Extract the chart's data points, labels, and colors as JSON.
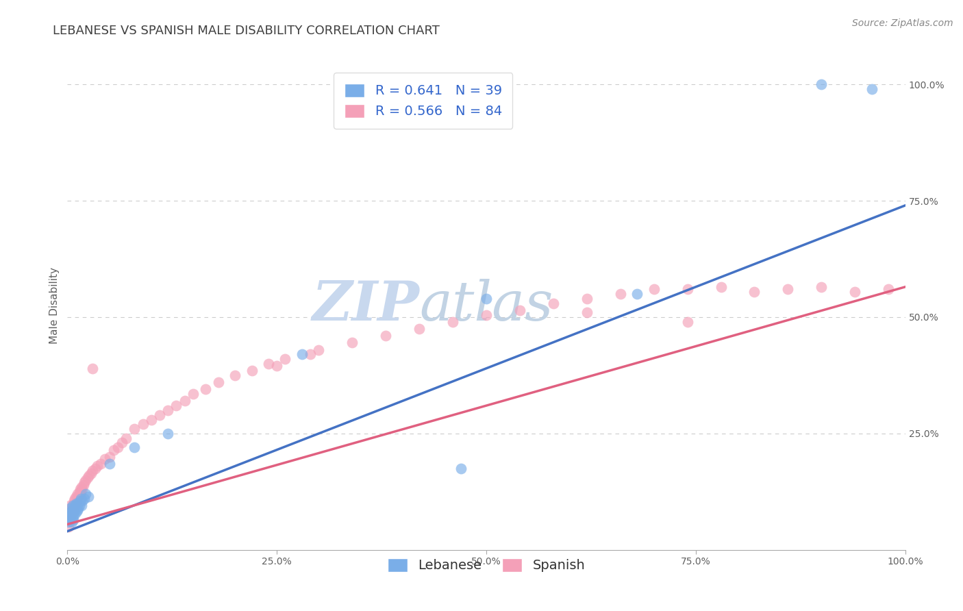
{
  "title": "LEBANESE VS SPANISH MALE DISABILITY CORRELATION CHART",
  "source_text": "Source: ZipAtlas.com",
  "ylabel": "Male Disability",
  "xlim": [
    0,
    1.0
  ],
  "ylim": [
    0,
    1.05
  ],
  "x_ticks": [
    0,
    0.25,
    0.5,
    0.75,
    1.0
  ],
  "x_tick_labels": [
    "0.0%",
    "25.0%",
    "50.0%",
    "75.0%",
    "100.0%"
  ],
  "y_ticks": [
    0.25,
    0.5,
    0.75,
    1.0
  ],
  "y_tick_labels": [
    "25.0%",
    "50.0%",
    "75.0%",
    "100.0%"
  ],
  "background_color": "#ffffff",
  "watermark_zip": "ZIP",
  "watermark_atlas": "atlas",
  "watermark_color_zip": "#c8d8ee",
  "watermark_color_atlas": "#b8cce0",
  "legend_R1": "R = 0.641",
  "legend_N1": "N = 39",
  "legend_R2": "R = 0.566",
  "legend_N2": "N = 84",
  "blue_scatter_color": "#7aaee8",
  "pink_scatter_color": "#f4a0b8",
  "blue_line_color": "#4472c4",
  "pink_line_color": "#e06080",
  "title_color": "#404040",
  "axis_label_color": "#606060",
  "tick_label_color": "#606060",
  "legend_text_color": "#3366cc",
  "grid_color": "#cccccc",
  "leb_trend_start_y": 0.04,
  "leb_trend_end_y": 0.74,
  "spa_trend_start_y": 0.055,
  "spa_trend_end_y": 0.565,
  "lebanese_x": [
    0.001,
    0.002,
    0.002,
    0.003,
    0.003,
    0.004,
    0.005,
    0.005,
    0.006,
    0.006,
    0.007,
    0.007,
    0.008,
    0.008,
    0.009,
    0.009,
    0.01,
    0.01,
    0.011,
    0.012,
    0.012,
    0.013,
    0.014,
    0.015,
    0.016,
    0.017,
    0.018,
    0.02,
    0.022,
    0.025,
    0.05,
    0.08,
    0.12,
    0.28,
    0.5,
    0.68,
    0.9,
    0.96,
    0.47
  ],
  "lebanese_y": [
    0.06,
    0.08,
    0.065,
    0.09,
    0.07,
    0.075,
    0.085,
    0.06,
    0.095,
    0.07,
    0.08,
    0.065,
    0.09,
    0.075,
    0.085,
    0.095,
    0.1,
    0.08,
    0.095,
    0.085,
    0.1,
    0.09,
    0.095,
    0.105,
    0.11,
    0.095,
    0.105,
    0.11,
    0.12,
    0.115,
    0.185,
    0.22,
    0.25,
    0.42,
    0.54,
    0.55,
    1.0,
    0.99,
    0.175
  ],
  "spanish_x": [
    0.001,
    0.001,
    0.002,
    0.002,
    0.003,
    0.003,
    0.003,
    0.004,
    0.004,
    0.005,
    0.005,
    0.006,
    0.006,
    0.007,
    0.007,
    0.008,
    0.008,
    0.009,
    0.009,
    0.01,
    0.01,
    0.011,
    0.012,
    0.012,
    0.013,
    0.014,
    0.015,
    0.015,
    0.016,
    0.017,
    0.018,
    0.019,
    0.02,
    0.022,
    0.024,
    0.026,
    0.028,
    0.03,
    0.033,
    0.036,
    0.04,
    0.045,
    0.05,
    0.055,
    0.06,
    0.065,
    0.07,
    0.08,
    0.09,
    0.1,
    0.11,
    0.12,
    0.13,
    0.14,
    0.15,
    0.165,
    0.18,
    0.2,
    0.22,
    0.24,
    0.26,
    0.3,
    0.34,
    0.38,
    0.42,
    0.46,
    0.5,
    0.54,
    0.58,
    0.62,
    0.66,
    0.7,
    0.74,
    0.78,
    0.82,
    0.86,
    0.9,
    0.94,
    0.98,
    0.03,
    0.25,
    0.29,
    0.62,
    0.74
  ],
  "spanish_y": [
    0.05,
    0.075,
    0.065,
    0.085,
    0.06,
    0.08,
    0.095,
    0.07,
    0.085,
    0.075,
    0.09,
    0.08,
    0.095,
    0.085,
    0.1,
    0.09,
    0.105,
    0.095,
    0.11,
    0.1,
    0.115,
    0.105,
    0.11,
    0.12,
    0.115,
    0.125,
    0.12,
    0.13,
    0.125,
    0.135,
    0.13,
    0.14,
    0.145,
    0.15,
    0.155,
    0.16,
    0.165,
    0.17,
    0.175,
    0.18,
    0.185,
    0.195,
    0.2,
    0.215,
    0.22,
    0.23,
    0.24,
    0.26,
    0.27,
    0.28,
    0.29,
    0.3,
    0.31,
    0.32,
    0.335,
    0.345,
    0.36,
    0.375,
    0.385,
    0.4,
    0.41,
    0.43,
    0.445,
    0.46,
    0.475,
    0.49,
    0.505,
    0.515,
    0.53,
    0.54,
    0.55,
    0.56,
    0.56,
    0.565,
    0.555,
    0.56,
    0.565,
    0.555,
    0.56,
    0.39,
    0.395,
    0.42,
    0.51,
    0.49
  ],
  "title_fontsize": 13,
  "label_fontsize": 11,
  "tick_fontsize": 10,
  "legend_fontsize": 14,
  "source_fontsize": 10
}
